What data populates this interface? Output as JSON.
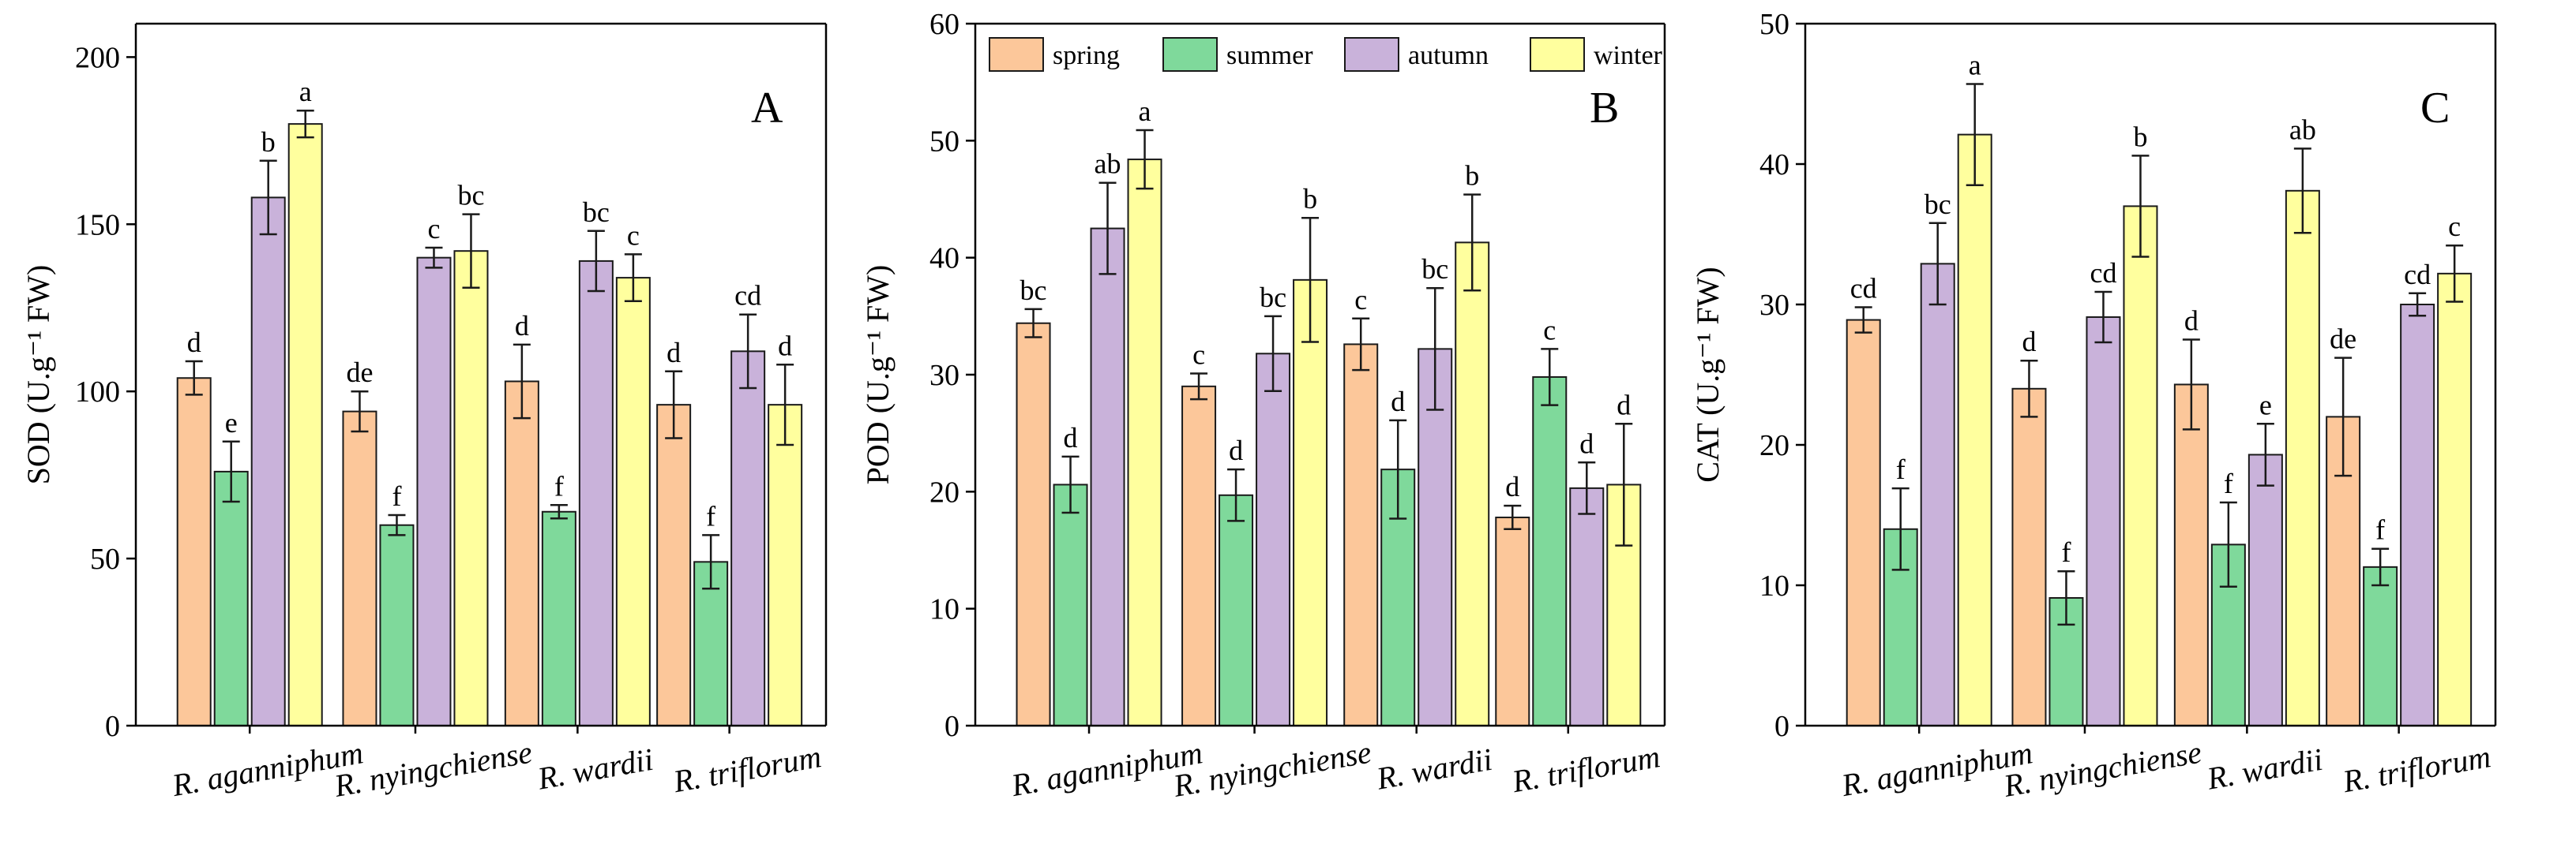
{
  "chart_data": [
    {
      "type": "bar",
      "panel_label": "A",
      "ylabel": "SOD (U.g⁻¹ FW)",
      "ylim": [
        0,
        210
      ],
      "yticks": [
        0,
        50,
        100,
        150,
        200
      ],
      "categories": [
        "R. aganniphum",
        "R. nyingchiense",
        "R. wardii",
        "R. triflorum"
      ],
      "series": [
        {
          "name": "spring",
          "values": [
            104,
            94,
            103,
            96
          ],
          "errors": [
            5,
            6,
            11,
            10
          ],
          "letters": [
            "d",
            "de",
            "d",
            "d"
          ]
        },
        {
          "name": "summer",
          "values": [
            76,
            60,
            64,
            49
          ],
          "errors": [
            9,
            3,
            2,
            8
          ],
          "letters": [
            "e",
            "f",
            "f",
            "f"
          ]
        },
        {
          "name": "autumn",
          "values": [
            158,
            140,
            139,
            112
          ],
          "errors": [
            11,
            3,
            9,
            11
          ],
          "letters": [
            "b",
            "c",
            "bc",
            "cd"
          ]
        },
        {
          "name": "winter",
          "values": [
            180,
            142,
            134,
            96
          ],
          "errors": [
            4,
            11,
            7,
            12
          ],
          "letters": [
            "a",
            "bc",
            "c",
            "d"
          ]
        }
      ],
      "legend": false
    },
    {
      "type": "bar",
      "panel_label": "B",
      "ylabel": "POD (U.g⁻¹ FW)",
      "ylim": [
        0,
        60
      ],
      "yticks": [
        0,
        10,
        20,
        30,
        40,
        50,
        60
      ],
      "categories": [
        "R. aganniphum",
        "R. nyingchiense",
        "R. wardii",
        "R. triflorum"
      ],
      "series": [
        {
          "name": "spring",
          "values": [
            34.4,
            29,
            32.6,
            17.8
          ],
          "errors": [
            1.2,
            1.1,
            2.2,
            1.0
          ],
          "letters": [
            "bc",
            "c",
            "c",
            "d"
          ]
        },
        {
          "name": "summer",
          "values": [
            20.6,
            19.7,
            21.9,
            29.8
          ],
          "errors": [
            2.4,
            2.2,
            4.2,
            2.4
          ],
          "letters": [
            "d",
            "d",
            "d",
            "c"
          ]
        },
        {
          "name": "autumn",
          "values": [
            42.5,
            31.8,
            32.2,
            20.3
          ],
          "errors": [
            3.9,
            3.2,
            5.2,
            2.2
          ],
          "letters": [
            "ab",
            "bc",
            "bc",
            "d"
          ]
        },
        {
          "name": "winter",
          "values": [
            48.4,
            38.1,
            41.3,
            20.6
          ],
          "errors": [
            2.5,
            5.3,
            4.1,
            5.2
          ],
          "letters": [
            "a",
            "b",
            "b",
            "d"
          ]
        }
      ],
      "legend": true,
      "legend_position": "top",
      "legend_entries": [
        "spring",
        "summer",
        "autumn",
        "winter"
      ]
    },
    {
      "type": "bar",
      "panel_label": "C",
      "ylabel": "CAT (U.g⁻¹ FW)",
      "ylim": [
        0,
        50
      ],
      "yticks": [
        0,
        10,
        20,
        30,
        40,
        50
      ],
      "categories": [
        "R. aganniphum",
        "R. nyingchiense",
        "R. wardii",
        "R. triflorum"
      ],
      "series": [
        {
          "name": "spring",
          "values": [
            28.9,
            24,
            24.3,
            22
          ],
          "errors": [
            0.9,
            2,
            3.2,
            4.2
          ],
          "letters": [
            "cd",
            "d",
            "d",
            "de"
          ]
        },
        {
          "name": "summer",
          "values": [
            14,
            9.1,
            12.9,
            11.3
          ],
          "errors": [
            2.9,
            1.9,
            3,
            1.3
          ],
          "letters": [
            "f",
            "f",
            "f",
            "f"
          ]
        },
        {
          "name": "autumn",
          "values": [
            32.9,
            29.1,
            19.3,
            30
          ],
          "errors": [
            2.9,
            1.8,
            2.2,
            0.8
          ],
          "letters": [
            "bc",
            "cd",
            "e",
            "cd"
          ]
        },
        {
          "name": "winter",
          "values": [
            42.1,
            37,
            38.1,
            32.2
          ],
          "errors": [
            3.6,
            3.6,
            3,
            2
          ],
          "letters": [
            "a",
            "b",
            "ab",
            "c"
          ]
        }
      ],
      "legend": false
    }
  ],
  "colors": {
    "spring": "#FCC79A",
    "summer": "#7FD99B",
    "autumn": "#C9B2DA",
    "winter": "#FFFF9E"
  }
}
